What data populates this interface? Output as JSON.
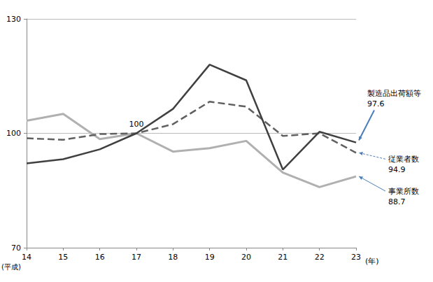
{
  "chart_data": {
    "type": "line",
    "categories": [
      "14",
      "15",
      "16",
      "17",
      "18",
      "19",
      "20",
      "21",
      "22",
      "23"
    ],
    "xlabel": "(年)",
    "x_era_label": "(平成)",
    "series": [
      {
        "name": "製造品出荷額等",
        "color": "#404040",
        "line_style": "solid",
        "values": [
          92.1,
          93.2,
          95.8,
          100,
          106.4,
          118.0,
          113.9,
          90.5,
          100.4,
          97.6
        ]
      },
      {
        "name": "従業者数",
        "color": "#606060",
        "line_style": "dashed",
        "values": [
          98.7,
          98.3,
          99.8,
          100,
          102.4,
          108.3,
          107.0,
          99.3,
          100.0,
          94.9
        ]
      },
      {
        "name": "事業所数",
        "color": "#b0b0b0",
        "line_style": "solid",
        "values": [
          103.3,
          105.1,
          98.5,
          100,
          95.2,
          96.1,
          98.0,
          89.7,
          85.9,
          88.7
        ]
      }
    ],
    "annotations": [
      {
        "text": "100",
        "x": "17",
        "y": 100
      }
    ],
    "ylim": [
      70,
      130
    ],
    "yticks": [
      70,
      100,
      130
    ],
    "grid": true,
    "legend": "none"
  }
}
